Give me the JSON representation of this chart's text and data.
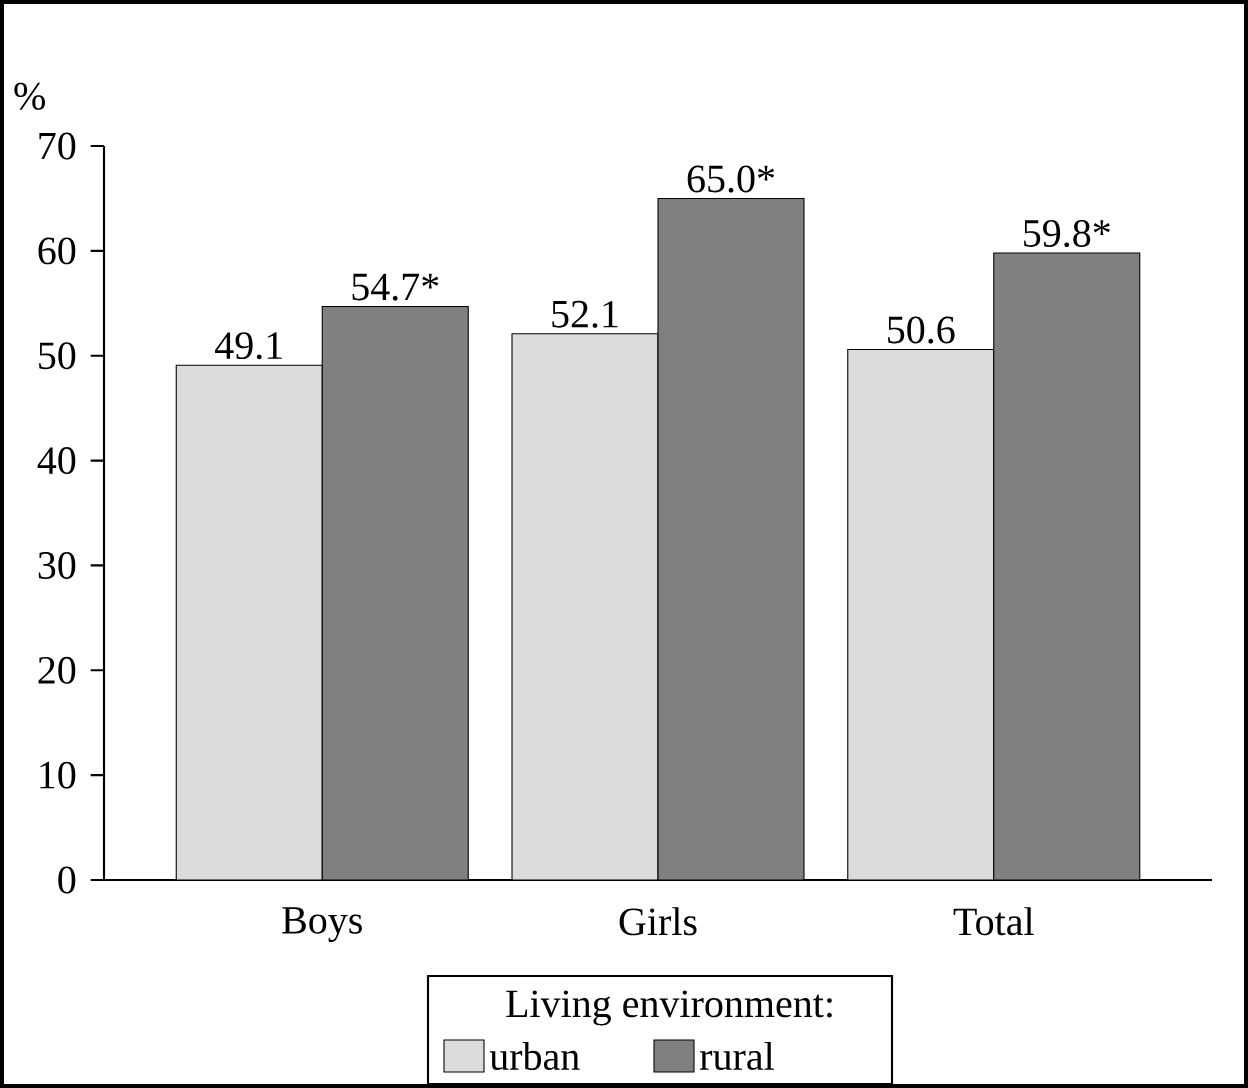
{
  "chart_data": {
    "type": "bar",
    "ylabel": "%",
    "categories": [
      "Boys",
      "Girls",
      "Total"
    ],
    "series": [
      {
        "name": "urban",
        "color": "#dcdcdc",
        "values": [
          49.1,
          52.1,
          50.6
        ],
        "value_labels": [
          "49.1",
          "52.1",
          "50.6"
        ]
      },
      {
        "name": "rural",
        "color": "#808080",
        "values": [
          54.7,
          65.0,
          59.8
        ],
        "value_labels": [
          "54.7*",
          "65.0*",
          "59.8*"
        ]
      }
    ],
    "legend_title": "Living environment:",
    "legend": "bottom",
    "ylim": [
      0,
      70
    ],
    "yticks": [
      0,
      10,
      20,
      30,
      40,
      50,
      60,
      70
    ]
  }
}
